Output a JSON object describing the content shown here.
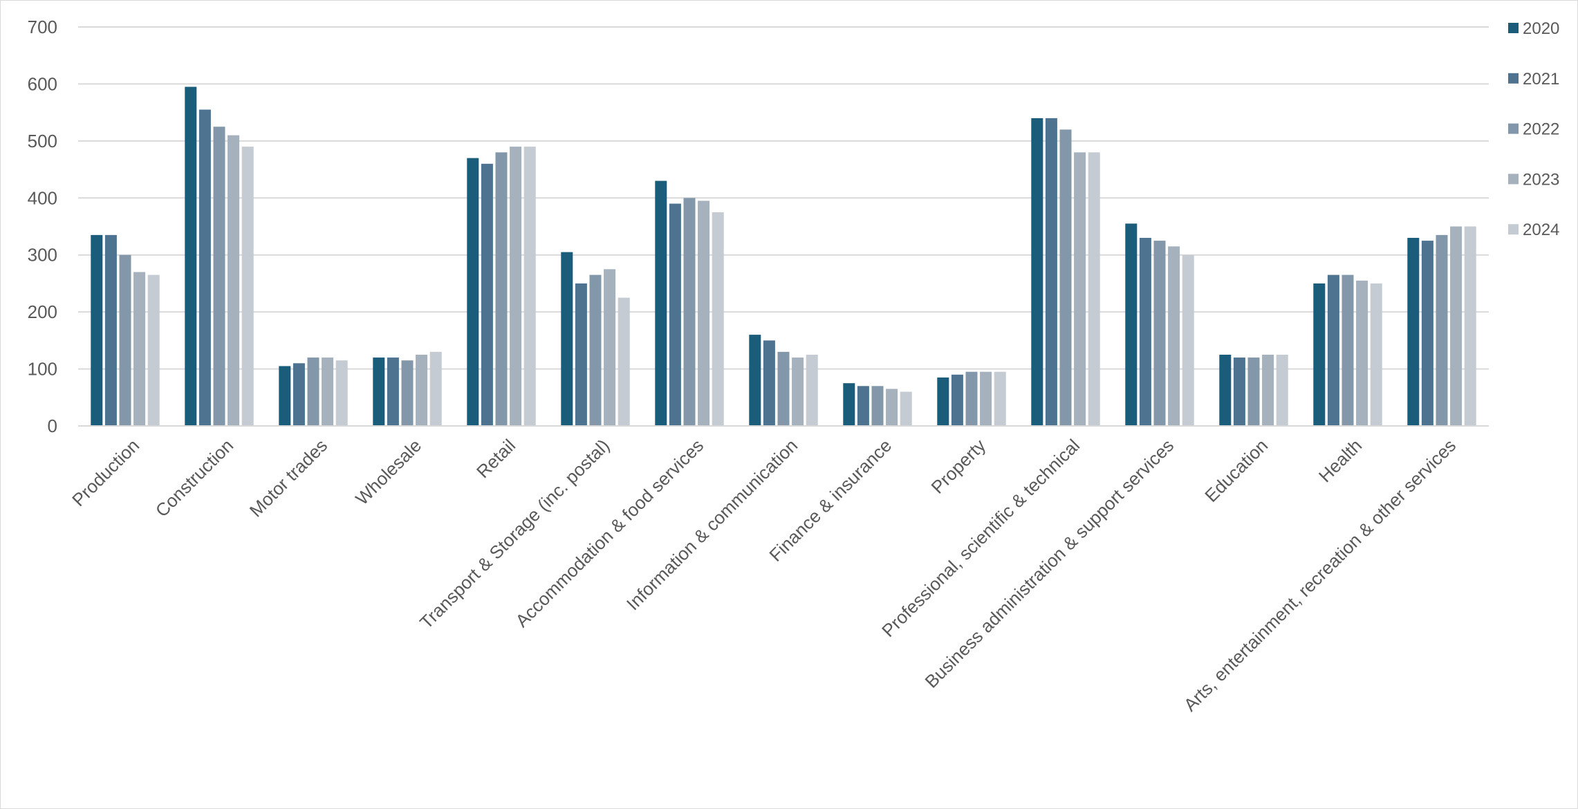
{
  "chart_data": {
    "type": "bar",
    "categories": [
      "Production",
      "Construction",
      "Motor trades",
      "Wholesale",
      "Retail",
      "Transport & Storage (inc. postal)",
      "Accommodation & food services",
      "Information & communication",
      "Finance & insurance",
      "Property",
      "Professional, scientific & technical",
      "Business administration & support services",
      "Education",
      "Health",
      "Arts, entertainment, recreation & other services"
    ],
    "series": [
      {
        "name": "2020",
        "color": "#1a5c7a",
        "values": [
          335,
          595,
          105,
          120,
          470,
          305,
          430,
          160,
          75,
          85,
          540,
          355,
          125,
          250,
          330
        ]
      },
      {
        "name": "2021",
        "color": "#4d7390",
        "values": [
          335,
          555,
          110,
          120,
          460,
          250,
          390,
          150,
          70,
          90,
          540,
          330,
          120,
          265,
          325
        ]
      },
      {
        "name": "2022",
        "color": "#8298aa",
        "values": [
          300,
          525,
          120,
          115,
          480,
          265,
          400,
          130,
          70,
          95,
          520,
          325,
          120,
          265,
          335
        ]
      },
      {
        "name": "2023",
        "color": "#a5b1bd",
        "values": [
          270,
          510,
          120,
          125,
          490,
          275,
          395,
          120,
          65,
          95,
          480,
          315,
          125,
          255,
          350
        ]
      },
      {
        "name": "2024",
        "color": "#c4cbd2",
        "values": [
          265,
          490,
          115,
          130,
          490,
          225,
          375,
          125,
          60,
          95,
          480,
          300,
          125,
          250,
          350
        ]
      }
    ],
    "y_ticks": [
      "0",
      "100",
      "200",
      "300",
      "400",
      "500",
      "600",
      "700"
    ],
    "ylim": [
      0,
      700
    ],
    "grid": true,
    "legend_position": "right",
    "title": "",
    "xlabel": "",
    "ylabel": ""
  }
}
